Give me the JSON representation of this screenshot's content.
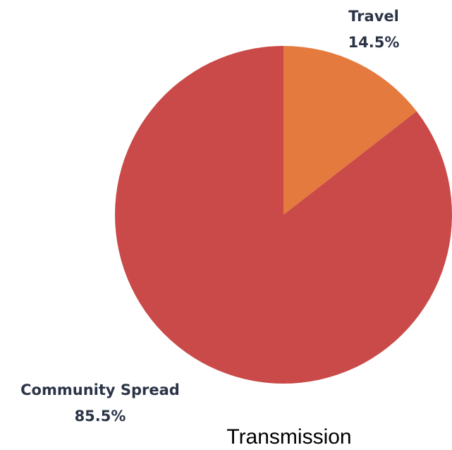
{
  "chart_data": {
    "type": "pie",
    "title": "Transmission",
    "slices": [
      {
        "label": "Travel",
        "value": 14.5,
        "value_label": "14.5%",
        "color": "#e47a3e"
      },
      {
        "label": "Community Spread",
        "value": 85.5,
        "value_label": "85.5%",
        "color": "#c94a48"
      }
    ],
    "label_color": "#2b3447",
    "title_color": "#000000",
    "start_angle": "12 o'clock",
    "direction": "clockwise"
  }
}
